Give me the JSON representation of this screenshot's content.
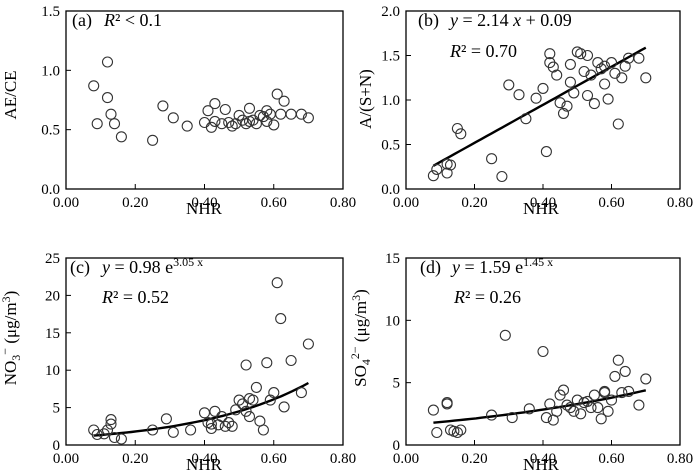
{
  "chart_data": [
    {
      "id": "a",
      "type": "scatter",
      "xlabel": "NHR",
      "ylabel": "AE/CE",
      "xlim": [
        0.0,
        0.8
      ],
      "ylim": [
        0.0,
        1.5
      ],
      "xticks": [
        "0.00",
        "0.20",
        "0.40",
        "0.60",
        "0.80"
      ],
      "yticks": [
        "0.0",
        "0.5",
        "1.0",
        "1.5"
      ],
      "panel_label": "(a)",
      "r2_text": "R² < 0.1",
      "fit": null,
      "x": [
        0.08,
        0.09,
        0.12,
        0.12,
        0.13,
        0.14,
        0.16,
        0.25,
        0.28,
        0.31,
        0.35,
        0.4,
        0.41,
        0.42,
        0.43,
        0.43,
        0.45,
        0.46,
        0.47,
        0.48,
        0.49,
        0.5,
        0.51,
        0.52,
        0.53,
        0.53,
        0.54,
        0.55,
        0.56,
        0.57,
        0.58,
        0.58,
        0.59,
        0.6,
        0.61,
        0.62,
        0.63,
        0.65,
        0.68,
        0.7
      ],
      "y": [
        0.87,
        0.55,
        1.07,
        0.77,
        0.63,
        0.55,
        0.44,
        0.41,
        0.7,
        0.6,
        0.53,
        0.56,
        0.66,
        0.52,
        0.72,
        0.57,
        0.55,
        0.67,
        0.56,
        0.53,
        0.55,
        0.62,
        0.58,
        0.55,
        0.68,
        0.57,
        0.58,
        0.55,
        0.62,
        0.61,
        0.66,
        0.57,
        0.63,
        0.54,
        0.8,
        0.63,
        0.74,
        0.63,
        0.63,
        0.6
      ]
    },
    {
      "id": "b",
      "type": "scatter",
      "xlabel": "NHR",
      "ylabel": "A/(S+N)",
      "xlim": [
        0.0,
        0.8
      ],
      "ylim": [
        0.0,
        2.0
      ],
      "xticks": [
        "0.00",
        "0.20",
        "0.40",
        "0.60",
        "0.80"
      ],
      "yticks": [
        "0.0",
        "0.5",
        "1.0",
        "1.5",
        "2.0"
      ],
      "panel_label": "(b)",
      "eq_text": "y = 2.14 x + 0.09",
      "r2_text": "R² = 0.70",
      "fit": {
        "kind": "linear",
        "slope": 2.14,
        "intercept": 0.09,
        "x_range": [
          0.08,
          0.7
        ]
      },
      "x": [
        0.08,
        0.09,
        0.12,
        0.12,
        0.13,
        0.15,
        0.16,
        0.25,
        0.28,
        0.3,
        0.33,
        0.35,
        0.38,
        0.4,
        0.41,
        0.42,
        0.42,
        0.43,
        0.44,
        0.45,
        0.46,
        0.47,
        0.48,
        0.48,
        0.49,
        0.5,
        0.51,
        0.52,
        0.53,
        0.53,
        0.54,
        0.55,
        0.56,
        0.57,
        0.58,
        0.58,
        0.59,
        0.6,
        0.61,
        0.62,
        0.63,
        0.64,
        0.65,
        0.68,
        0.7
      ],
      "y": [
        0.15,
        0.22,
        0.18,
        0.28,
        0.27,
        0.68,
        0.62,
        0.34,
        0.14,
        1.17,
        1.06,
        0.79,
        1.02,
        1.13,
        0.42,
        1.42,
        1.52,
        1.37,
        1.28,
        0.97,
        0.85,
        0.93,
        1.4,
        1.2,
        1.08,
        1.54,
        1.52,
        1.32,
        1.5,
        1.05,
        1.28,
        0.96,
        1.42,
        1.35,
        1.18,
        1.38,
        1.01,
        1.42,
        1.3,
        0.73,
        1.25,
        1.38,
        1.47,
        1.47,
        1.25
      ]
    },
    {
      "id": "c",
      "type": "scatter",
      "xlabel": "NHR",
      "ylabel": "NO3− (μg/m3)",
      "xlim": [
        0.0,
        0.8
      ],
      "ylim": [
        0,
        25
      ],
      "xticks": [
        "0.00",
        "0.20",
        "0.40",
        "0.60",
        "0.80"
      ],
      "yticks": [
        "0",
        "5",
        "10",
        "15",
        "20",
        "25"
      ],
      "panel_label": "(c)",
      "eq_text": "y = 0.98 e3.05 x",
      "r2_text": "R² = 0.52",
      "fit": {
        "kind": "exp",
        "a": 0.98,
        "b": 3.05,
        "x_range": [
          0.08,
          0.7
        ]
      },
      "x": [
        0.08,
        0.09,
        0.11,
        0.12,
        0.13,
        0.13,
        0.14,
        0.16,
        0.25,
        0.29,
        0.31,
        0.36,
        0.4,
        0.41,
        0.42,
        0.42,
        0.43,
        0.44,
        0.45,
        0.46,
        0.47,
        0.48,
        0.49,
        0.5,
        0.51,
        0.52,
        0.52,
        0.53,
        0.53,
        0.54,
        0.55,
        0.56,
        0.57,
        0.58,
        0.59,
        0.6,
        0.61,
        0.62,
        0.63,
        0.65,
        0.68,
        0.7
      ],
      "y": [
        2.0,
        1.4,
        1.5,
        2.0,
        2.8,
        3.4,
        1.0,
        0.8,
        2.0,
        3.5,
        1.7,
        2.0,
        4.3,
        3.0,
        2.2,
        2.8,
        4.5,
        2.7,
        3.8,
        2.5,
        3.0,
        2.5,
        4.7,
        6.0,
        5.5,
        4.5,
        10.7,
        6.2,
        3.8,
        6.0,
        7.7,
        3.2,
        2.0,
        11.0,
        6.0,
        7.0,
        21.7,
        16.9,
        5.1,
        11.3,
        7.0,
        13.5
      ]
    },
    {
      "id": "d",
      "type": "scatter",
      "xlabel": "NHR",
      "ylabel": "SO42− (μg/m3)",
      "xlim": [
        0.0,
        0.8
      ],
      "ylim": [
        0,
        15
      ],
      "xticks": [
        "0.00",
        "0.20",
        "0.40",
        "0.60",
        "0.80"
      ],
      "yticks": [
        "0",
        "5",
        "10",
        "15"
      ],
      "panel_label": "(d)",
      "eq_text": "y = 1.59 e1.45 x",
      "r2_text": "R² = 0.26",
      "fit": {
        "kind": "exp",
        "a": 1.59,
        "b": 1.45,
        "x_range": [
          0.08,
          0.7
        ]
      },
      "x": [
        0.08,
        0.09,
        0.12,
        0.12,
        0.13,
        0.14,
        0.15,
        0.16,
        0.25,
        0.29,
        0.31,
        0.36,
        0.4,
        0.41,
        0.42,
        0.43,
        0.44,
        0.45,
        0.46,
        0.47,
        0.48,
        0.49,
        0.5,
        0.51,
        0.52,
        0.53,
        0.54,
        0.55,
        0.56,
        0.57,
        0.58,
        0.58,
        0.59,
        0.6,
        0.61,
        0.62,
        0.63,
        0.64,
        0.65,
        0.68,
        0.7
      ],
      "y": [
        2.8,
        1.0,
        3.4,
        3.3,
        1.2,
        1.1,
        1.0,
        1.2,
        2.4,
        8.8,
        2.2,
        2.9,
        7.5,
        2.2,
        3.3,
        2.0,
        2.7,
        4.0,
        4.4,
        3.2,
        3.0,
        2.7,
        3.6,
        2.5,
        3.4,
        3.5,
        3.0,
        4.0,
        3.0,
        2.1,
        4.2,
        4.3,
        2.7,
        3.6,
        5.5,
        6.8,
        4.2,
        5.9,
        4.3,
        3.2,
        5.3
      ]
    }
  ]
}
